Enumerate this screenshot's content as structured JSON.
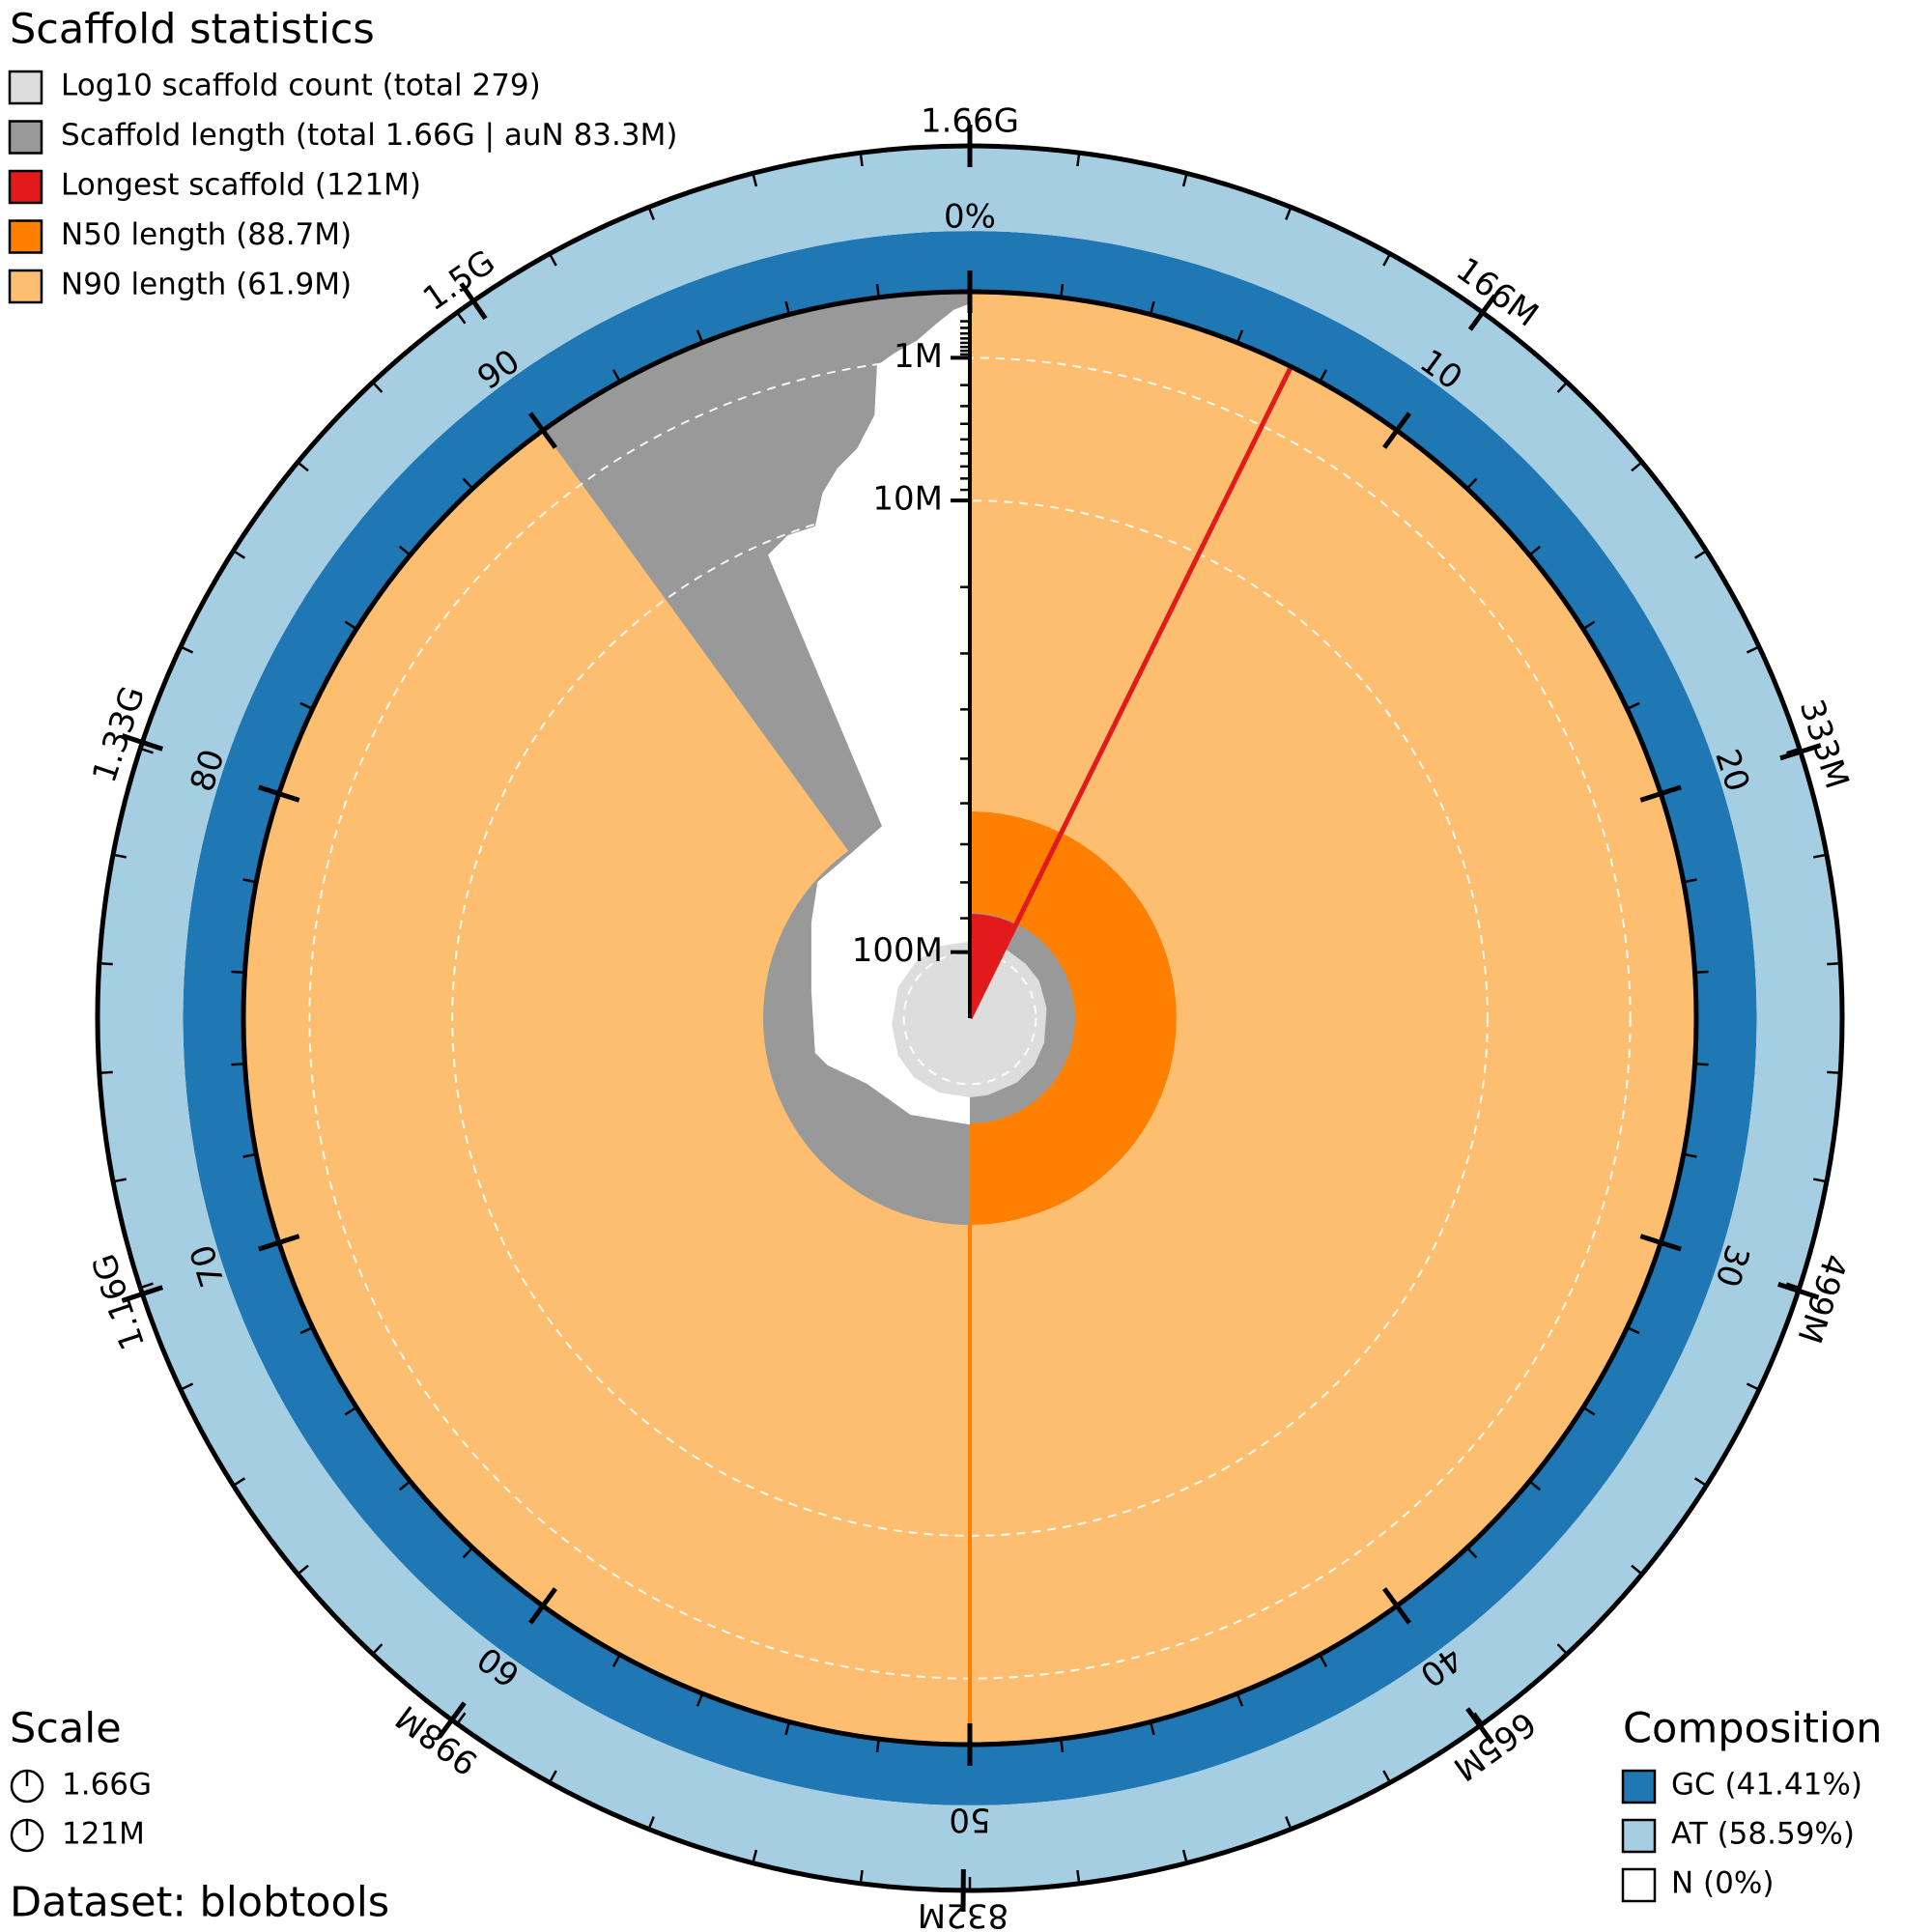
{
  "chart_data": {
    "type": "snail",
    "title": "Scaffold statistics",
    "legend": [
      {
        "label": "Log10 scaffold count (total 279)",
        "color": "#dddddd"
      },
      {
        "label": "Scaffold length (total 1.66G | auN 83.3M)",
        "color": "#999999"
      },
      {
        "label": "Longest scaffold (121M)",
        "color": "#e31a1c",
        "value": 121000000
      },
      {
        "label": "N50 length (88.7M)",
        "color": "#ff7f00",
        "percent": 50
      },
      {
        "label": "N90 length (61.9M)",
        "color": "#fdbf6f",
        "percent": 90
      }
    ],
    "length_ticks": [
      {
        "value": 1660000000,
        "label": "1.66G"
      },
      {
        "value": 166000000,
        "label": "166M"
      },
      {
        "value": 333000000,
        "label": "333M"
      },
      {
        "value": 499000000,
        "label": "499M"
      },
      {
        "value": 665000000,
        "label": "665M"
      },
      {
        "value": 832000000,
        "label": "832M"
      },
      {
        "value": 998000000,
        "label": "998M"
      },
      {
        "value": 1160000000,
        "label": "1.16G"
      },
      {
        "value": 1330000000,
        "label": "1.33G"
      },
      {
        "value": 1500000000,
        "label": "1.5G"
      }
    ],
    "percent_ticks": [
      {
        "value": 0,
        "label": "0%"
      },
      10,
      20,
      30,
      40,
      50,
      60,
      70,
      80,
      90
    ],
    "radial_ticks": [
      {
        "value": 1000000,
        "label": "1M"
      },
      {
        "value": 10000000,
        "label": "10M"
      },
      {
        "value": 100000000,
        "label": "100M"
      }
    ],
    "scale_title": "Scale",
    "scale": [
      {
        "value": 1660000000,
        "label": "1.66G"
      },
      {
        "value": 121000000,
        "label": "121M"
      }
    ],
    "dataset": "Dataset: blobtools",
    "composition": {
      "title": "Composition",
      "items": [
        {
          "label": "GC (41.41%)",
          "value": 41.41,
          "color": "#1f78b4"
        },
        {
          "label": "AT (58.59%)",
          "value": 58.59,
          "color": "#a6cee3"
        },
        {
          "label": "N (0%)",
          "value": 0,
          "color": "#ffffff"
        }
      ]
    }
  }
}
